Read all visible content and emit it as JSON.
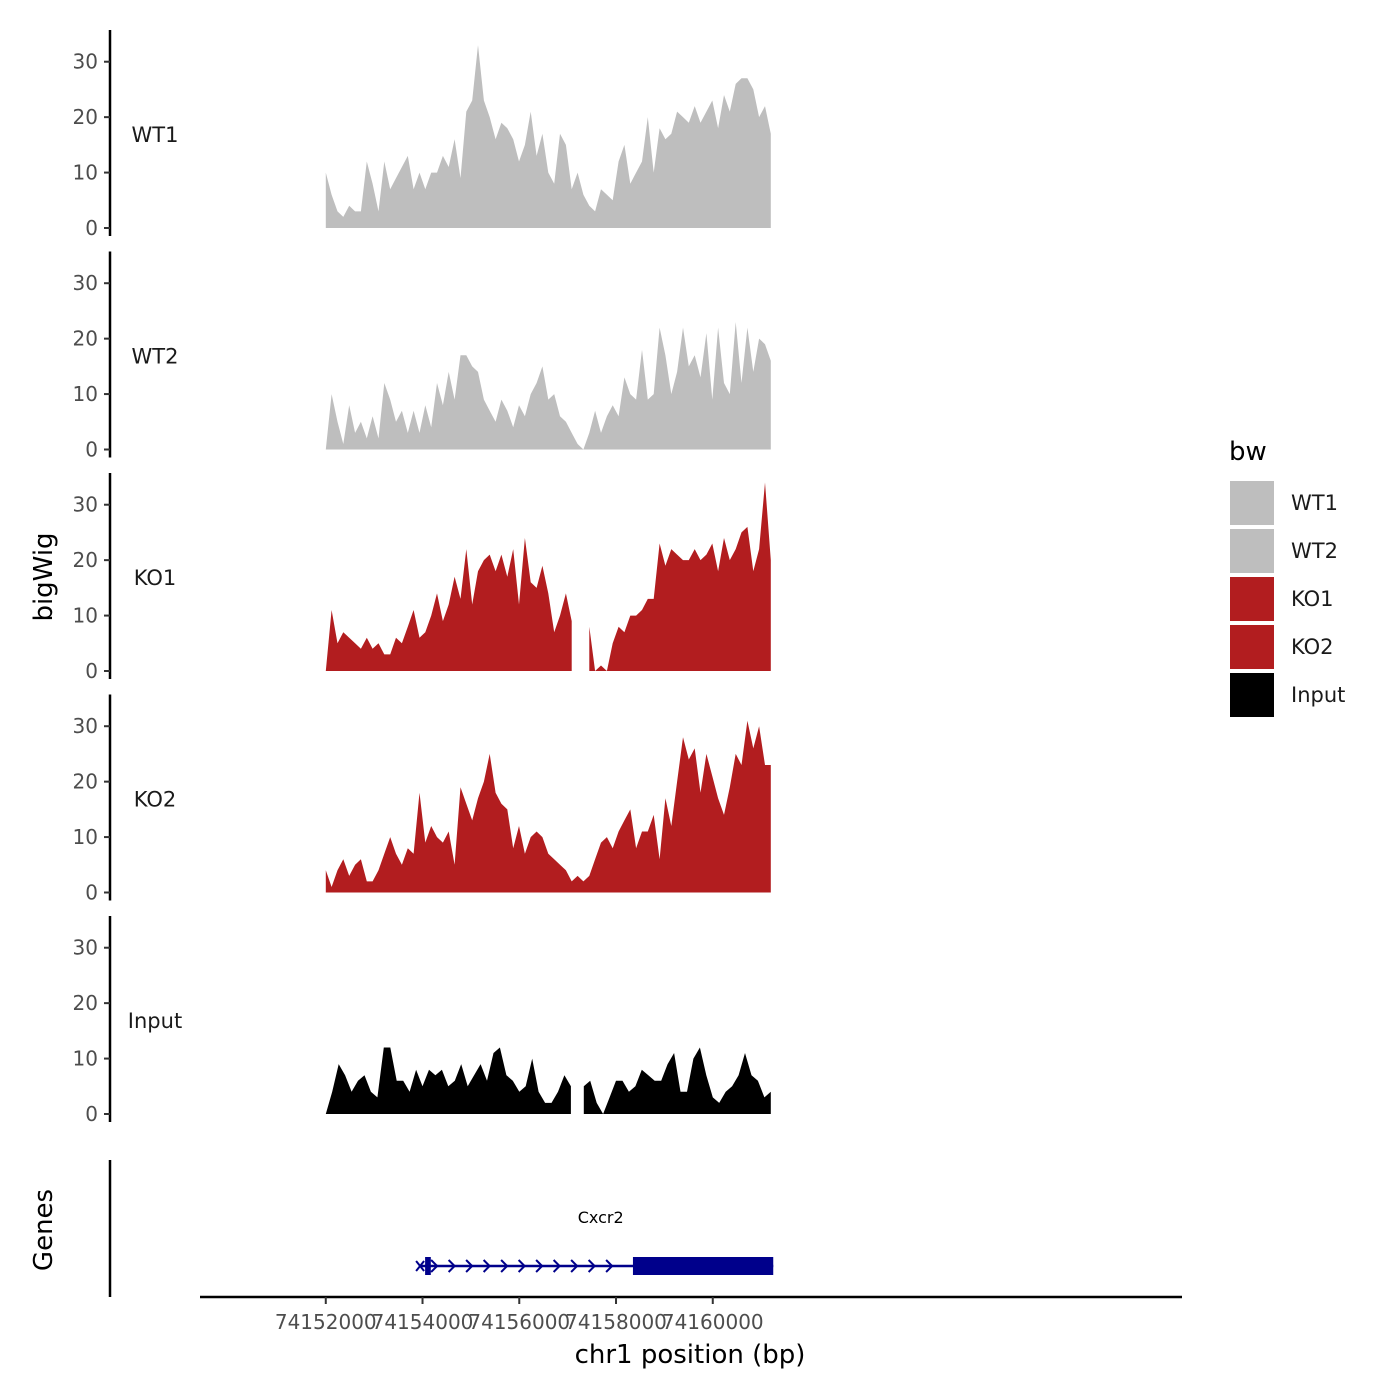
{
  "chart_data": {
    "type": "area",
    "ylabel": "bigWig",
    "xlabel": "chr1 position (bp)",
    "genes_label": "Genes",
    "x_range": [
      74152000,
      74161200
    ],
    "xlim": [
      74149400,
      74169700
    ],
    "y_ticks": [
      0,
      10,
      20,
      30
    ],
    "ylim": [
      0,
      35
    ],
    "x_ticks": [
      74152000,
      74154000,
      74156000,
      74158000,
      74160000
    ],
    "x_tick_labels": [
      "74152000",
      "74154000",
      "74156000",
      "74158000",
      "74160000"
    ],
    "tracks": [
      {
        "name": "WT1",
        "color": "#bebebe",
        "values": [
          10,
          6,
          3,
          2,
          4,
          3,
          3,
          12,
          8,
          3,
          12,
          7,
          9,
          11,
          13,
          7,
          10,
          7,
          10,
          10,
          13,
          11,
          16,
          9,
          21,
          23,
          33,
          23,
          20,
          16,
          19,
          18,
          16,
          12,
          15,
          21,
          13,
          17,
          10,
          8,
          17,
          15,
          7,
          10,
          6,
          4,
          3,
          7,
          6,
          5,
          12,
          15,
          8,
          10,
          12,
          20,
          10,
          18,
          16,
          17,
          21,
          20,
          19,
          22,
          19,
          21,
          23,
          18,
          24,
          21,
          26,
          27,
          27,
          25,
          20,
          22,
          17
        ],
        "gaps": []
      },
      {
        "name": "WT2",
        "color": "#bebebe",
        "values": [
          0,
          10,
          5,
          1,
          8,
          3,
          5,
          2,
          6,
          2,
          12,
          9,
          5,
          7,
          3,
          7,
          3,
          8,
          4,
          12,
          8,
          14,
          9,
          17,
          17,
          15,
          14,
          9,
          7,
          5,
          9,
          7,
          4,
          8,
          6,
          10,
          12,
          15,
          9,
          10,
          6,
          5,
          3,
          1,
          0,
          3,
          7,
          3,
          6,
          8,
          6,
          13,
          10,
          9,
          18,
          9,
          10,
          22,
          17,
          10,
          14,
          22,
          15,
          17,
          13,
          21,
          9,
          22,
          12,
          10,
          23,
          12,
          22,
          14,
          20,
          19,
          16
        ],
        "gaps": []
      },
      {
        "name": "KO1",
        "color": "#b21d1f",
        "values": [
          0,
          11,
          5,
          7,
          6,
          5,
          4,
          6,
          4,
          5,
          3,
          3,
          6,
          5,
          8,
          11,
          6,
          7,
          10,
          14,
          9,
          12,
          17,
          13,
          22,
          12,
          18,
          20,
          21,
          18,
          21,
          17,
          22,
          12,
          24,
          16,
          15,
          19,
          14,
          7,
          10,
          14,
          9,
          7,
          15,
          8,
          0,
          1,
          0,
          5,
          8,
          7,
          10,
          10,
          11,
          13,
          13,
          23,
          19,
          22,
          21,
          20,
          20,
          22,
          20,
          21,
          23,
          18,
          24,
          20,
          22,
          25,
          26,
          18,
          22,
          34,
          20
        ],
        "gaps": [
          {
            "start": 74157150,
            "end": 74157350
          }
        ]
      },
      {
        "name": "KO2",
        "color": "#b21d1f",
        "values": [
          4,
          1,
          4,
          6,
          3,
          5,
          6,
          2,
          2,
          4,
          7,
          10,
          7,
          5,
          8,
          7,
          18,
          9,
          12,
          10,
          9,
          11,
          5,
          19,
          16,
          13,
          17,
          20,
          25,
          18,
          16,
          15,
          8,
          12,
          7,
          10,
          11,
          10,
          7,
          6,
          5,
          4,
          2,
          3,
          2,
          3,
          6,
          9,
          10,
          8,
          11,
          13,
          15,
          8,
          11,
          11,
          14,
          6,
          17,
          12,
          20,
          28,
          24,
          26,
          18,
          25,
          21,
          17,
          14,
          19,
          25,
          23,
          31,
          26,
          30,
          23,
          23
        ],
        "gaps": []
      },
      {
        "name": "Input",
        "color": "#000000",
        "values": [
          0,
          4,
          9,
          7,
          4,
          6,
          7,
          4,
          3,
          12,
          12,
          6,
          6,
          4,
          8,
          5,
          8,
          7,
          8,
          5,
          6,
          9,
          5,
          7,
          9,
          6,
          11,
          12,
          7,
          6,
          4,
          5,
          10,
          4,
          2,
          2,
          4,
          7,
          5,
          1,
          5,
          6,
          2,
          0,
          3,
          6,
          6,
          4,
          5,
          8,
          7,
          6,
          6,
          9,
          11,
          4,
          4,
          10,
          12,
          7,
          3,
          2,
          4,
          5,
          7,
          11,
          7,
          6,
          3,
          4
        ],
        "gaps": [
          {
            "start": 74157150,
            "end": 74157280
          }
        ]
      }
    ],
    "legend": {
      "title": "bw",
      "entries": [
        {
          "label": "WT1",
          "color": "#bebebe"
        },
        {
          "label": "WT2",
          "color": "#bebebe"
        },
        {
          "label": "KO1",
          "color": "#b21d1f"
        },
        {
          "label": "KO2",
          "color": "#b21d1f"
        },
        {
          "label": "Input",
          "color": "#000000"
        }
      ]
    },
    "gene": {
      "name": "Cxcr2",
      "color": "#00008b",
      "start": 74153950,
      "end": 74161250,
      "utr5_end": 74154130,
      "cds_start": 74158350
    }
  }
}
